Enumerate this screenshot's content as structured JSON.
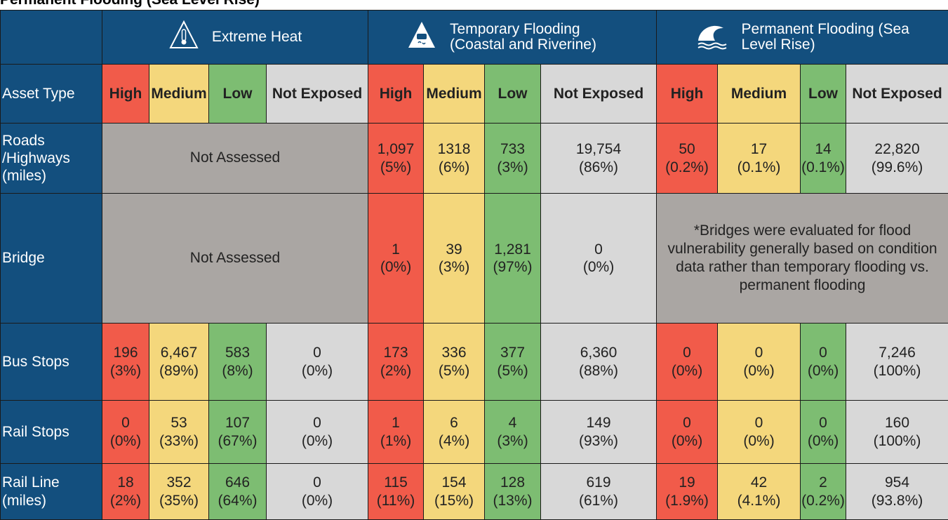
{
  "caption": "Permanent Flooding (Sea Level Rise)",
  "table": {
    "groups": [
      {
        "text": "",
        "span": 1
      },
      {
        "text": "Extreme Heat",
        "span": 4,
        "icon": "heat"
      },
      {
        "text": "Temporary Flooding (Coastal and Riverine)",
        "span": 4,
        "icon": "car"
      },
      {
        "text": "Permanent Flooding (Sea Level Rise)",
        "span": 4,
        "icon": "wave"
      }
    ],
    "subheaders": [
      {
        "text": "Asset Type",
        "color": "#134f7e"
      },
      {
        "text": "High",
        "color": "#f15b4a"
      },
      {
        "text": "Medium",
        "color": "#f4d77c"
      },
      {
        "text": "Low",
        "color": "#7dbd72"
      },
      {
        "text": "Not Exposed",
        "color": "#d8d8d8"
      },
      {
        "text": "High",
        "color": "#f15b4a"
      },
      {
        "text": "Medium",
        "color": "#f4d77c"
      },
      {
        "text": "Low",
        "color": "#7dbd72"
      },
      {
        "text": "Not Exposed",
        "color": "#d8d8d8"
      },
      {
        "text": "High",
        "color": "#f15b4a"
      },
      {
        "text": "Medium",
        "color": "#f4d77c"
      },
      {
        "text": "Low",
        "color": "#7dbd72"
      },
      {
        "text": "Not Exposed",
        "color": "#d8d8d8"
      }
    ],
    "rows": [
      {
        "label": "Roads /Highways (miles)",
        "cells": [
          {
            "text": "Not Assessed",
            "span": 4,
            "color": "#aaa6a3"
          },
          {
            "value": "1,097",
            "pct": "(5%)"
          },
          {
            "value": "1318",
            "pct": "(6%)"
          },
          {
            "value": "733",
            "pct": "(3%)"
          },
          {
            "value": "19,754",
            "pct": "(86%)"
          },
          {
            "value": "50",
            "pct": "(0.2%)"
          },
          {
            "value": "17",
            "pct": "(0.1%)"
          },
          {
            "value": "14",
            "pct": "(0.1%)"
          },
          {
            "value": "22,820",
            "pct": "(99.6%)"
          }
        ]
      },
      {
        "label": "Bridge",
        "cells": [
          {
            "text": "Not Assessed",
            "span": 4,
            "color": "#aaa6a3"
          },
          {
            "value": "1",
            "pct": "(0%)"
          },
          {
            "value": "39",
            "pct": "(3%)"
          },
          {
            "value": "1,281",
            "pct": "(97%)"
          },
          {
            "value": "0",
            "pct": "(0%)"
          },
          {
            "text": "*Bridges were evaluated for flood vulnerability generally based on condition data rather than temporary flooding vs. permanent flooding",
            "span": 4,
            "color": "#aaa6a3"
          }
        ]
      },
      {
        "label": "Bus Stops",
        "cells": [
          {
            "value": "196",
            "pct": "(3%)"
          },
          {
            "value": "6,467",
            "pct": "(89%)"
          },
          {
            "value": "583",
            "pct": "(8%)"
          },
          {
            "value": "0",
            "pct": "(0%)"
          },
          {
            "value": "173",
            "pct": "(2%)"
          },
          {
            "value": "336",
            "pct": "(5%)"
          },
          {
            "value": "377",
            "pct": "(5%)"
          },
          {
            "value": "6,360",
            "pct": "(88%)"
          },
          {
            "value": "0",
            "pct": "(0%)"
          },
          {
            "value": "0",
            "pct": "(0%)"
          },
          {
            "value": "0",
            "pct": "(0%)"
          },
          {
            "value": "7,246",
            "pct": "(100%)"
          }
        ]
      },
      {
        "label": "Rail Stops",
        "cells": [
          {
            "value": "0",
            "pct": "(0%)"
          },
          {
            "value": "53",
            "pct": "(33%)"
          },
          {
            "value": "107",
            "pct": "(67%)"
          },
          {
            "value": "0",
            "pct": "(0%)"
          },
          {
            "value": "1",
            "pct": "(1%)"
          },
          {
            "value": "6",
            "pct": "(4%)"
          },
          {
            "value": "4",
            "pct": "(3%)"
          },
          {
            "value": "149",
            "pct": "(93%)"
          },
          {
            "value": "0",
            "pct": "(0%)"
          },
          {
            "value": "0",
            "pct": "(0%)"
          },
          {
            "value": "0",
            "pct": "(0%)"
          },
          {
            "value": "160",
            "pct": "(100%)"
          }
        ]
      },
      {
        "label": "Rail Line (miles)",
        "cells": [
          {
            "value": "18",
            "pct": "(2%)"
          },
          {
            "value": "352",
            "pct": "(35%)"
          },
          {
            "value": "646",
            "pct": "(64%)"
          },
          {
            "value": "0",
            "pct": "(0%)"
          },
          {
            "value": "115",
            "pct": "(11%)"
          },
          {
            "value": "154",
            "pct": "(15%)"
          },
          {
            "value": "128",
            "pct": "(13%)"
          },
          {
            "value": "619",
            "pct": "(61%)"
          },
          {
            "value": "19",
            "pct": "(1.9%)"
          },
          {
            "value": "42",
            "pct": "(4.1%)"
          },
          {
            "value": "2",
            "pct": "(0.2%)"
          },
          {
            "value": "954",
            "pct": "(93.8%)"
          }
        ]
      }
    ]
  }
}
